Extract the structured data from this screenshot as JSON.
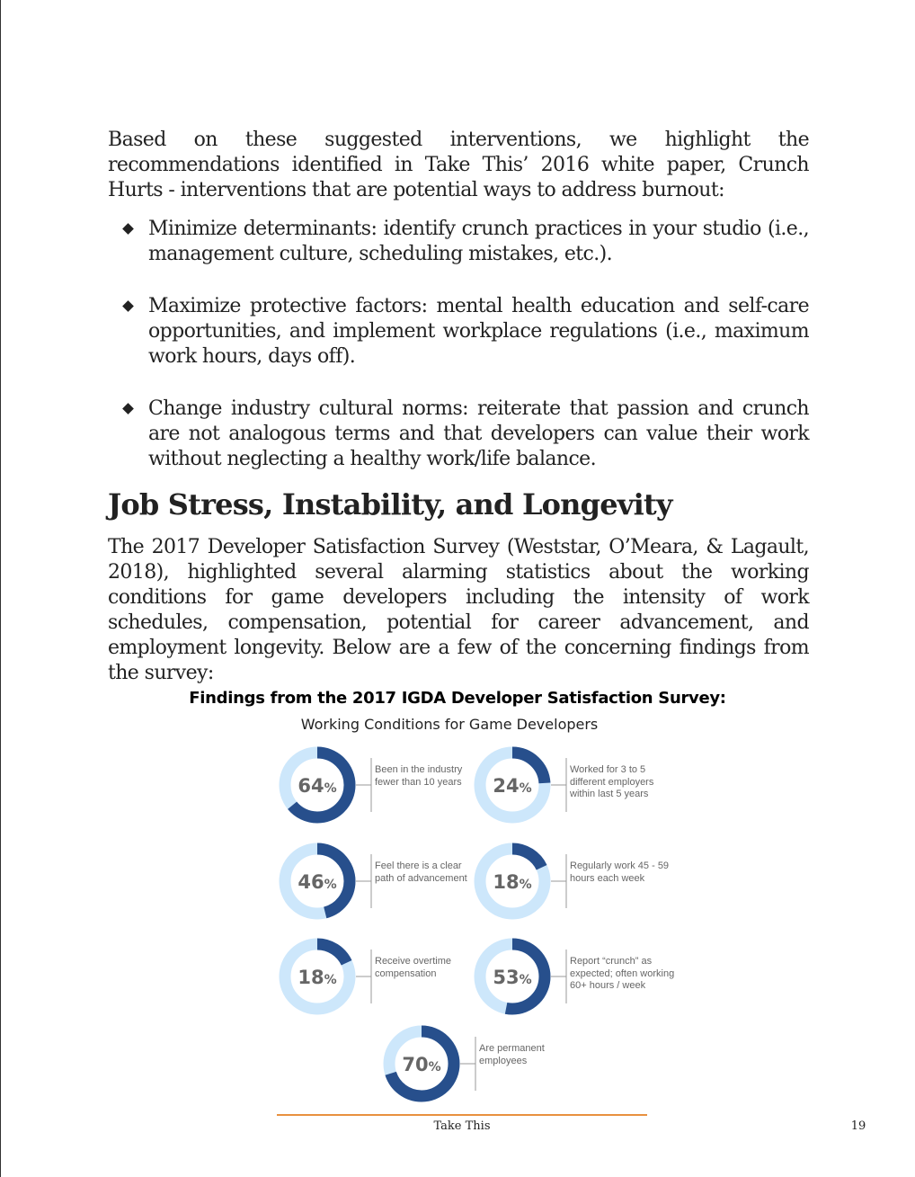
{
  "intro": "Based on these suggested interventions, we highlight the recommendations identified in Take This’ 2016 white paper, Crunch Hurts - interventions that are potential ways to address burnout:",
  "bullets": [
    "Minimize determinants: identify crunch practices in your studio (i.e., management culture, scheduling mistakes, etc.).",
    "Maximize protective factors: mental health education and self-care opportunities, and implement workplace regulations (i.e., maximum work hours, days off).",
    "Change industry cultural norms: reiterate that passion and crunch are not analogous terms and that developers can value their work without neglecting a healthy work/life balance."
  ],
  "section_heading": "Job Stress, Instability, and Longevity",
  "section_body": "The 2017 Developer Satisfaction Survey (Weststar, O’Meara, & Lagault, 2018), highlighted several alarming statistics about the working conditions for game developers including the intensity of work schedules, compensation, potential for career advancement, and employment longevity. Below are a few of the concerning findings from the survey:",
  "figure": {
    "title": "Findings from the 2017 IGDA Developer Satisfaction Survey:",
    "subtitle": "Working Conditions for Game Developers",
    "colors": {
      "filled": "#274f8c",
      "track": "#cde7fb",
      "text": "#666666"
    }
  },
  "chart_data": {
    "type": "donut",
    "title": "Findings from the 2017 IGDA Developer Satisfaction Survey:",
    "subtitle": "Working Conditions for Game Developers",
    "items": [
      {
        "value": 64,
        "label": "Been in the industry fewer than 10 years"
      },
      {
        "value": 24,
        "label": "Worked for 3 to 5 different employers within last 5 years"
      },
      {
        "value": 46,
        "label": "Feel there is a clear path of advancement"
      },
      {
        "value": 18,
        "label": "Regularly work 45 - 59 hours each week"
      },
      {
        "value": 18,
        "label": "Receive overtime compensation"
      },
      {
        "value": 53,
        "label": "Report “crunch” as expected; often working 60+ hours / week"
      },
      {
        "value": 70,
        "label": "Are permanent employees"
      }
    ]
  },
  "footer": {
    "text": "Take This",
    "page": "19"
  }
}
